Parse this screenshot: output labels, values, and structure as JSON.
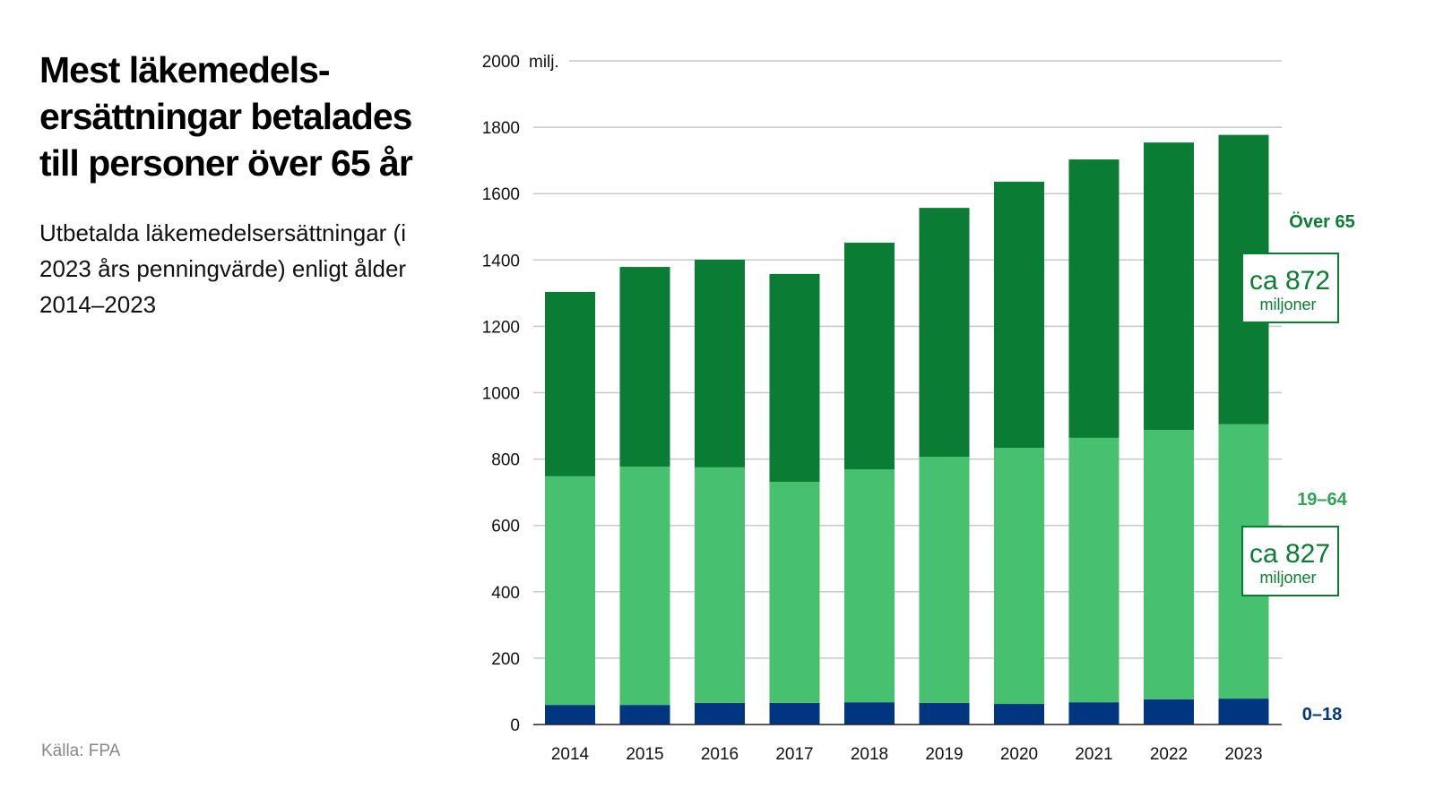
{
  "title": "Mest läkemedels­ersättningar betalades till personer över 65 år",
  "subtitle": "Utbetalda läkemedelsersättningar (i 2023 års penningvärde) enligt ålder 2014–2023",
  "source": "Källa: FPA",
  "chart_data": {
    "type": "bar",
    "stacked": true,
    "categories": [
      "2014",
      "2015",
      "2016",
      "2017",
      "2018",
      "2019",
      "2020",
      "2021",
      "2022",
      "2023"
    ],
    "series": [
      {
        "name": "0–18",
        "color": "#003580",
        "values": [
          59,
          59,
          65,
          65,
          67,
          65,
          62,
          67,
          76,
          78
        ]
      },
      {
        "name": "19–64",
        "color": "#47c06f",
        "label_color": "#2fa553",
        "values": [
          689,
          718,
          710,
          666,
          702,
          742,
          772,
          797,
          812,
          827
        ]
      },
      {
        "name": "Över 65",
        "color": "#0a7c33",
        "label_color": "#0a7c33",
        "values": [
          556,
          602,
          626,
          627,
          683,
          750,
          802,
          839,
          866,
          872
        ]
      }
    ],
    "yunit": "milj.",
    "ylim": [
      0,
      2000
    ],
    "yticks": [
      0,
      200,
      400,
      600,
      800,
      1000,
      1200,
      1400,
      1600,
      1800,
      2000
    ],
    "grid": true,
    "annotations": [
      {
        "series": "Över 65",
        "prefix": "ca",
        "value": "872",
        "unit": "miljoner"
      },
      {
        "series": "19–64",
        "prefix": "ca",
        "value": "827",
        "unit": "miljoner"
      }
    ]
  }
}
